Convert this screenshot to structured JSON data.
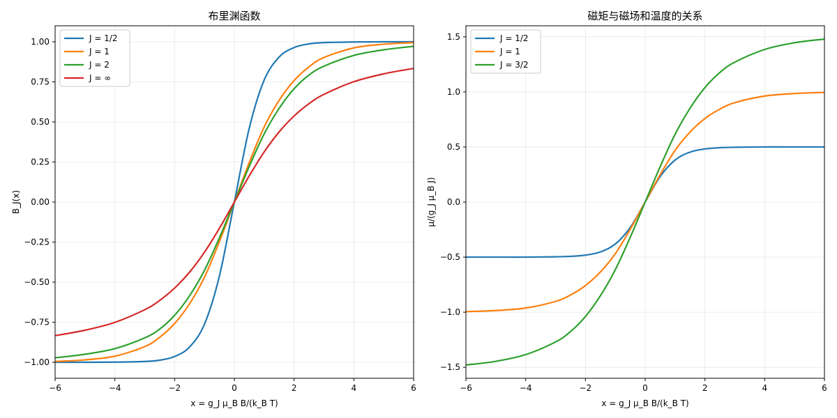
{
  "chart_data": [
    {
      "type": "line",
      "title": "布里渊函数",
      "xlabel": "x = g_J μ_B B/(k_B T)",
      "ylabel": "B_J(x)",
      "xlim": [
        -6,
        6
      ],
      "ylim": [
        -1.1,
        1.1
      ],
      "grid": true,
      "legend": "top-left",
      "x_ticks": [
        -6,
        -4,
        -2,
        0,
        2,
        4,
        6
      ],
      "x_tick_labels": [
        "−6",
        "−4",
        "−2",
        "0",
        "2",
        "4",
        "6"
      ],
      "y_ticks": [
        -1.0,
        -0.75,
        -0.5,
        -0.25,
        0.0,
        0.25,
        0.5,
        0.75,
        1.0
      ],
      "y_tick_labels": [
        "−1.00",
        "−0.75",
        "−0.50",
        "−0.25",
        "0.00",
        "0.25",
        "0.50",
        "0.75",
        "1.00"
      ],
      "series": [
        {
          "name": "J = 1/2",
          "color": "#1f77b4",
          "x": [
            -6,
            -5,
            -4,
            -3,
            -2.5,
            -2,
            -1.5,
            -1,
            -0.5,
            0,
            0.5,
            1,
            1.5,
            2,
            2.5,
            3,
            4,
            5,
            6
          ],
          "y": [
            -1.0,
            -1.0,
            -0.999,
            -0.995,
            -0.987,
            -0.964,
            -0.905,
            -0.762,
            -0.462,
            0.0,
            0.462,
            0.762,
            0.905,
            0.964,
            0.987,
            0.995,
            0.999,
            1.0,
            1.0
          ]
        },
        {
          "name": "J = 1",
          "color": "#ff7f0e",
          "x": [
            -6,
            -5,
            -4,
            -3,
            -2.5,
            -2,
            -1.5,
            -1,
            -0.5,
            0,
            0.5,
            1,
            1.5,
            2,
            2.5,
            3,
            4,
            5,
            6
          ],
          "y": [
            -0.995,
            -0.985,
            -0.962,
            -0.902,
            -0.844,
            -0.758,
            -0.635,
            -0.469,
            -0.247,
            0.0,
            0.247,
            0.469,
            0.635,
            0.758,
            0.844,
            0.902,
            0.962,
            0.985,
            0.995
          ]
        },
        {
          "name": "J = 2",
          "color": "#2ca02c",
          "x": [
            -6,
            -5,
            -4,
            -3,
            -2.5,
            -2,
            -1.5,
            -1,
            -0.5,
            0,
            0.5,
            1,
            1.5,
            2,
            2.5,
            3,
            4,
            5,
            6
          ],
          "y": [
            -0.972,
            -0.95,
            -0.915,
            -0.848,
            -0.793,
            -0.707,
            -0.585,
            -0.426,
            -0.223,
            0.0,
            0.223,
            0.426,
            0.585,
            0.707,
            0.793,
            0.848,
            0.915,
            0.95,
            0.972
          ]
        },
        {
          "name": "J = ∞",
          "color": "#d62728",
          "x": [
            -6,
            -5,
            -4,
            -3,
            -2.5,
            -2,
            -1.5,
            -1,
            -0.5,
            0,
            0.5,
            1,
            1.5,
            2,
            2.5,
            3,
            4,
            5,
            6
          ],
          "y": [
            -0.834,
            -0.8,
            -0.751,
            -0.672,
            -0.614,
            -0.537,
            -0.438,
            -0.313,
            -0.164,
            0.0,
            0.164,
            0.313,
            0.438,
            0.537,
            0.614,
            0.672,
            0.751,
            0.8,
            0.834
          ]
        }
      ]
    },
    {
      "type": "line",
      "title": "磁矩与磁场和温度的关系",
      "xlabel": "x = g_J μ_B B/(k_B T)",
      "ylabel": "μ/(g_J μ_B J)",
      "xlim": [
        -6,
        6
      ],
      "ylim": [
        -1.6,
        1.6
      ],
      "grid": true,
      "legend": "top-left",
      "x_ticks": [
        -6,
        -4,
        -2,
        0,
        2,
        4,
        6
      ],
      "x_tick_labels": [
        "−6",
        "−4",
        "−2",
        "0",
        "2",
        "4",
        "6"
      ],
      "y_ticks": [
        -1.5,
        -1.0,
        -0.5,
        0.0,
        0.5,
        1.0,
        1.5
      ],
      "y_tick_labels": [
        "−1.5",
        "−1.0",
        "−0.5",
        "0.0",
        "0.5",
        "1.0",
        "1.5"
      ],
      "series": [
        {
          "name": "J = 1/2",
          "color": "#1f77b4",
          "x": [
            -6,
            -5,
            -4,
            -3,
            -2.5,
            -2,
            -1.5,
            -1,
            -0.5,
            0,
            0.5,
            1,
            1.5,
            2,
            2.5,
            3,
            4,
            5,
            6
          ],
          "y": [
            -0.5,
            -0.5,
            -0.5,
            -0.497,
            -0.493,
            -0.482,
            -0.453,
            -0.381,
            -0.231,
            0.0,
            0.231,
            0.381,
            0.453,
            0.482,
            0.493,
            0.497,
            0.5,
            0.5,
            0.5
          ]
        },
        {
          "name": "J = 1",
          "color": "#ff7f0e",
          "x": [
            -6,
            -5,
            -4,
            -3,
            -2.5,
            -2,
            -1.5,
            -1,
            -0.5,
            0,
            0.5,
            1,
            1.5,
            2,
            2.5,
            3,
            4,
            5,
            6
          ],
          "y": [
            -0.995,
            -0.985,
            -0.962,
            -0.902,
            -0.844,
            -0.758,
            -0.635,
            -0.469,
            -0.247,
            0.0,
            0.247,
            0.469,
            0.635,
            0.758,
            0.844,
            0.902,
            0.962,
            0.985,
            0.995
          ]
        },
        {
          "name": "J = 3/2",
          "color": "#2ca02c",
          "x": [
            -6,
            -5,
            -4,
            -3,
            -2.5,
            -2,
            -1.5,
            -1,
            -0.5,
            0,
            0.5,
            1,
            1.5,
            2,
            2.5,
            3,
            4,
            5,
            6
          ],
          "y": [
            -1.479,
            -1.446,
            -1.385,
            -1.27,
            -1.176,
            -1.039,
            -0.851,
            -0.614,
            -0.32,
            0.0,
            0.32,
            0.614,
            0.851,
            1.039,
            1.176,
            1.27,
            1.385,
            1.446,
            1.479
          ]
        }
      ]
    }
  ]
}
